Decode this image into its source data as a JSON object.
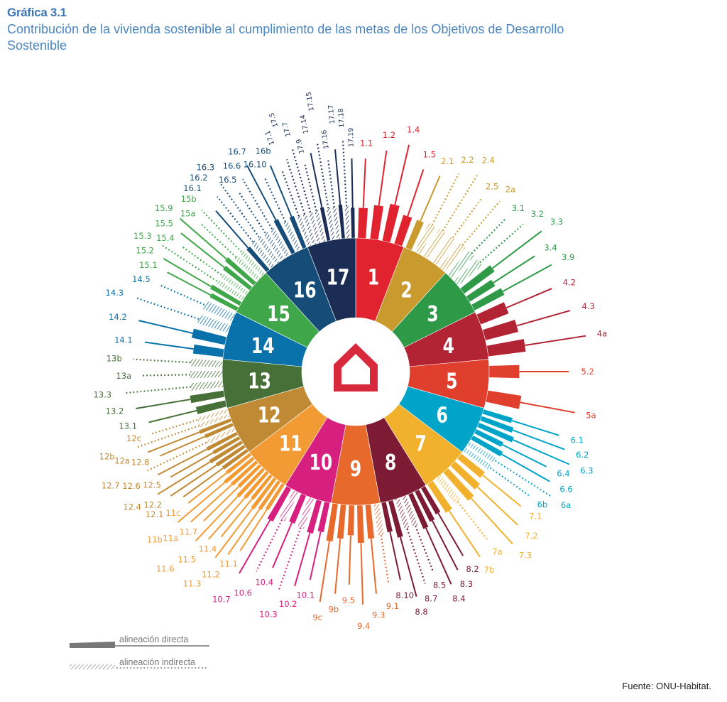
{
  "header": {
    "figure_label": "Gráfica 3.1",
    "title": "Contribución de la vivienda sostenible al cumplimiento de las metas de los Objetivos de Desarrollo Sostenible"
  },
  "source": "Fuente: ONU-Habitat.",
  "legend": {
    "direct": "alineación directa",
    "indirect": "alineación indirecta"
  },
  "center_icon": "house-icon",
  "chart_data": {
    "type": "radial",
    "title": "Contribución de la vivienda sostenible al cumplimiento de las metas de los Objetivos de Desarrollo Sostenible",
    "legend_entries": [
      "alineación directa",
      "alineación indirecta"
    ],
    "legend_position": "bottom-left",
    "goals": [
      {
        "id": "1",
        "color": "#e0232f",
        "targets": [
          {
            "t": "1.1",
            "a": "direct"
          },
          {
            "t": "1.2",
            "a": "direct"
          },
          {
            "t": "1.4",
            "a": "direct"
          },
          {
            "t": "1.5",
            "a": "direct"
          }
        ]
      },
      {
        "id": "2",
        "color": "#c99a2e",
        "targets": [
          {
            "t": "2.1",
            "a": "direct"
          },
          {
            "t": "2.2",
            "a": "indirect"
          },
          {
            "t": "2.4",
            "a": "indirect"
          },
          {
            "t": "2.5",
            "a": "indirect"
          },
          {
            "t": "2a",
            "a": "indirect"
          }
        ]
      },
      {
        "id": "3",
        "color": "#2e9a47",
        "targets": [
          {
            "t": "3.1",
            "a": "indirect"
          },
          {
            "t": "3.2",
            "a": "indirect"
          },
          {
            "t": "3.3",
            "a": "direct"
          },
          {
            "t": "3.4",
            "a": "direct"
          },
          {
            "t": "3.9",
            "a": "direct"
          }
        ]
      },
      {
        "id": "4",
        "color": "#b22334",
        "targets": [
          {
            "t": "4.2",
            "a": "direct"
          },
          {
            "t": "4.3",
            "a": "direct"
          },
          {
            "t": "4a",
            "a": "direct"
          }
        ]
      },
      {
        "id": "5",
        "color": "#e03f2e",
        "targets": [
          {
            "t": "5.2",
            "a": "direct"
          },
          {
            "t": "5a",
            "a": "direct"
          }
        ]
      },
      {
        "id": "6",
        "color": "#00a4c8",
        "targets": [
          {
            "t": "6.1",
            "a": "direct"
          },
          {
            "t": "6.2",
            "a": "direct"
          },
          {
            "t": "6.3",
            "a": "direct"
          },
          {
            "t": "6.4",
            "a": "direct"
          },
          {
            "t": "6.6",
            "a": "direct"
          },
          {
            "t": "6a",
            "a": "indirect"
          },
          {
            "t": "6b",
            "a": "indirect"
          }
        ]
      },
      {
        "id": "7",
        "color": "#f2b12c",
        "targets": [
          {
            "t": "7.1",
            "a": "direct"
          },
          {
            "t": "7.2",
            "a": "direct"
          },
          {
            "t": "7.3",
            "a": "direct"
          },
          {
            "t": "7a",
            "a": "indirect"
          },
          {
            "t": "7b",
            "a": "direct"
          }
        ]
      },
      {
        "id": "8",
        "color": "#7d1b35",
        "targets": [
          {
            "t": "8.2",
            "a": "direct"
          },
          {
            "t": "8.3",
            "a": "direct"
          },
          {
            "t": "8.4",
            "a": "direct"
          },
          {
            "t": "8.5",
            "a": "indirect"
          },
          {
            "t": "8.7",
            "a": "indirect"
          },
          {
            "t": "8.8",
            "a": "direct"
          },
          {
            "t": "8.10",
            "a": "direct"
          }
        ]
      },
      {
        "id": "9",
        "color": "#e8692c",
        "targets": [
          {
            "t": "9.1",
            "a": "indirect"
          },
          {
            "t": "9.3",
            "a": "direct"
          },
          {
            "t": "9.4",
            "a": "direct"
          },
          {
            "t": "9.5",
            "a": "direct"
          },
          {
            "t": "9b",
            "a": "direct"
          },
          {
            "t": "9c",
            "a": "direct"
          }
        ]
      },
      {
        "id": "10",
        "color": "#d61f7e",
        "targets": [
          {
            "t": "10.1",
            "a": "direct"
          },
          {
            "t": "10.2",
            "a": "direct"
          },
          {
            "t": "10.3",
            "a": "indirect"
          },
          {
            "t": "10.4",
            "a": "direct"
          },
          {
            "t": "10.6",
            "a": "indirect"
          },
          {
            "t": "10.7",
            "a": "direct"
          }
        ]
      },
      {
        "id": "11",
        "color": "#f29b35",
        "targets": [
          {
            "t": "11.1",
            "a": "direct"
          },
          {
            "t": "11.2",
            "a": "direct"
          },
          {
            "t": "11.3",
            "a": "direct"
          },
          {
            "t": "11.4",
            "a": "direct"
          },
          {
            "t": "11.5",
            "a": "direct"
          },
          {
            "t": "11.6",
            "a": "direct"
          },
          {
            "t": "11.7",
            "a": "direct"
          },
          {
            "t": "11a",
            "a": "direct"
          },
          {
            "t": "11b",
            "a": "direct"
          },
          {
            "t": "11c",
            "a": "direct"
          }
        ]
      },
      {
        "id": "12",
        "color": "#c08a35",
        "targets": [
          {
            "t": "12.1",
            "a": "direct"
          },
          {
            "t": "12.2",
            "a": "direct"
          },
          {
            "t": "12.4",
            "a": "direct"
          },
          {
            "t": "12.5",
            "a": "direct"
          },
          {
            "t": "12.6",
            "a": "direct"
          },
          {
            "t": "12.7",
            "a": "indirect"
          },
          {
            "t": "12.8",
            "a": "direct"
          },
          {
            "t": "12a",
            "a": "direct"
          },
          {
            "t": "12b",
            "a": "indirect"
          },
          {
            "t": "12c",
            "a": "indirect"
          }
        ]
      },
      {
        "id": "13",
        "color": "#467038",
        "targets": [
          {
            "t": "13.1",
            "a": "direct"
          },
          {
            "t": "13.2",
            "a": "direct"
          },
          {
            "t": "13.3",
            "a": "indirect"
          },
          {
            "t": "13a",
            "a": "indirect"
          },
          {
            "t": "13b",
            "a": "indirect"
          }
        ]
      },
      {
        "id": "14",
        "color": "#0a72ab",
        "targets": [
          {
            "t": "14.1",
            "a": "direct"
          },
          {
            "t": "14.2",
            "a": "direct"
          },
          {
            "t": "14.3",
            "a": "indirect"
          },
          {
            "t": "14.5",
            "a": "indirect"
          }
        ]
      },
      {
        "id": "15",
        "color": "#3fa749",
        "targets": [
          {
            "t": "15.1",
            "a": "direct"
          },
          {
            "t": "15.2",
            "a": "direct"
          },
          {
            "t": "15.3",
            "a": "indirect"
          },
          {
            "t": "15.4",
            "a": "indirect"
          },
          {
            "t": "15.5",
            "a": "direct"
          },
          {
            "t": "15.9",
            "a": "direct"
          },
          {
            "t": "15a",
            "a": "indirect"
          },
          {
            "t": "15b",
            "a": "indirect"
          }
        ]
      },
      {
        "id": "16",
        "color": "#164d78",
        "targets": [
          {
            "t": "16.1",
            "a": "direct"
          },
          {
            "t": "16.2",
            "a": "indirect"
          },
          {
            "t": "16.3",
            "a": "indirect"
          },
          {
            "t": "16.5",
            "a": "indirect"
          },
          {
            "t": "16.6",
            "a": "indirect"
          },
          {
            "t": "16.7",
            "a": "direct"
          },
          {
            "t": "16.10",
            "a": "indirect"
          },
          {
            "t": "16b",
            "a": "direct"
          }
        ]
      },
      {
        "id": "17",
        "color": "#1c2d55",
        "targets": [
          {
            "t": "17.1",
            "a": "indirect"
          },
          {
            "t": "17.5",
            "a": "indirect"
          },
          {
            "t": "17.7",
            "a": "indirect"
          },
          {
            "t": "17.9",
            "a": "indirect"
          },
          {
            "t": "17.14",
            "a": "direct"
          },
          {
            "t": "17.15",
            "a": "indirect"
          },
          {
            "t": "17.16",
            "a": "indirect"
          },
          {
            "t": "17.17",
            "a": "direct"
          },
          {
            "t": "17.18",
            "a": "indirect"
          },
          {
            "t": "17.19",
            "a": "direct"
          }
        ]
      }
    ]
  }
}
